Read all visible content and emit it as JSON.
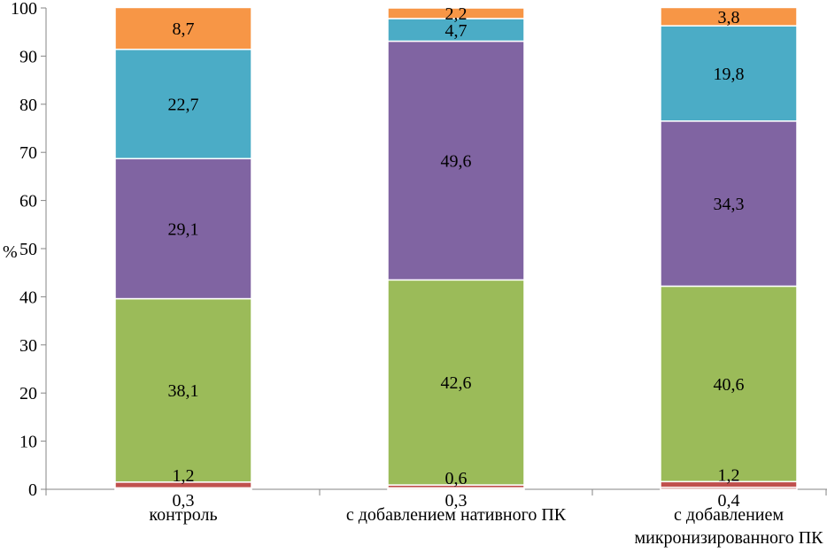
{
  "chart_data": {
    "type": "bar",
    "stacked": true,
    "ylabel": "%",
    "xlabel": "",
    "ylim": [
      0,
      100
    ],
    "yticks": [
      "0",
      "10",
      "20",
      "30",
      "40",
      "50",
      "60",
      "70",
      "80",
      "90",
      "100"
    ],
    "grid": false,
    "legend": "none",
    "categories": [
      [
        "контроль"
      ],
      [
        "с добавлением нативного ПК"
      ],
      [
        "с добавлением",
        "микронизированного ПК"
      ]
    ],
    "series": [
      {
        "color": "#C0504D",
        "values": [
          0.3,
          0.3,
          0.4
        ],
        "labels": [
          "0,3",
          "0,3",
          "0,4"
        ]
      },
      {
        "color": "#C0504D",
        "values": [
          1.2,
          0.6,
          1.2
        ],
        "labels": [
          "1,2",
          "0,6",
          "1,2"
        ]
      },
      {
        "color": "#9BBB59",
        "values": [
          38.1,
          42.6,
          40.6
        ],
        "labels": [
          "38,1",
          "42,6",
          "40,6"
        ]
      },
      {
        "color": "#8064A2",
        "values": [
          29.1,
          49.6,
          34.3
        ],
        "labels": [
          "29,1",
          "49,6",
          "34,3"
        ]
      },
      {
        "color": "#4BACC6",
        "values": [
          22.7,
          4.7,
          19.8
        ],
        "labels": [
          "22,7",
          "4,7",
          "19,8"
        ]
      },
      {
        "color": "#F79646",
        "values": [
          8.7,
          2.2,
          3.8
        ],
        "labels": [
          "8,7",
          "2,2",
          "3,8"
        ]
      }
    ]
  }
}
